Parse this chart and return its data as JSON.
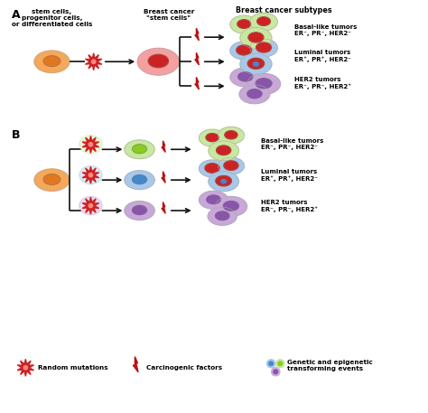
{
  "panel_A_label": "A",
  "panel_B_label": "B",
  "header_col1": "stem cells,\nprogenitor cells,\nor differentiated cells",
  "header_col2": "Breast cancer\n\"stem cells\"",
  "header_col3": "Breast cancer subtypes",
  "basal_label": "Basal-like tumors\nER⁻, PR⁻, HER2⁻",
  "luminal_label": "Luminal tumors\nER⁺, PR⁺, HER2⁻",
  "her2_label": "HER2 tumors\nER⁻, PR⁻, HER2⁺",
  "legend_mut": "Random mutations",
  "legend_carcin": "Carcinogenic factors",
  "legend_genetic": "Genetic and epigenetic\ntransforming events",
  "colors": {
    "orange_outer": "#F5A85A",
    "orange_inner": "#E07820",
    "red_outer": "#F5A0A0",
    "red_inner": "#CC2222",
    "green_outer": "#C8E8A0",
    "green_inner": "#88CC22",
    "blue_outer": "#A8C8E8",
    "blue_inner": "#4488CC",
    "purple_outer": "#C8A8D8",
    "purple_inner": "#8855AA",
    "red_nucleus": "#CC2222",
    "arrow_color": "#111111",
    "bg_color": "#ffffff",
    "lightning_color": "#CC2222"
  }
}
